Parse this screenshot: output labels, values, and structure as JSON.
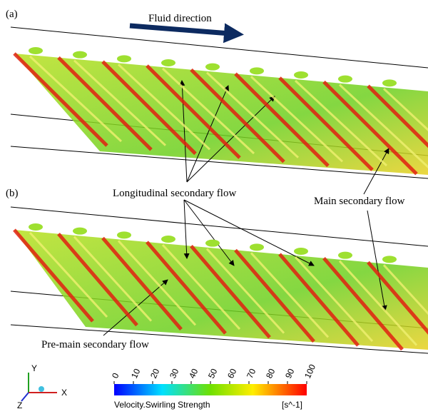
{
  "panels": [
    {
      "label": "(a)"
    },
    {
      "label": "(b)"
    }
  ],
  "annotations": {
    "fluid_direction": "Fluid direction",
    "longitudinal": "Longitudinal secondary flow",
    "main": "Main secondary flow",
    "pre_main": "Pre-main secondary flow"
  },
  "colorbar": {
    "title": "Velocity.Swirling Strength",
    "unit": "[s^-1]",
    "lim": [
      0,
      100
    ],
    "ticks": [
      0,
      10,
      20,
      30,
      40,
      50,
      60,
      70,
      80,
      90,
      100
    ]
  },
  "triad": {
    "x": "X",
    "y": "Y",
    "z": "Z"
  }
}
